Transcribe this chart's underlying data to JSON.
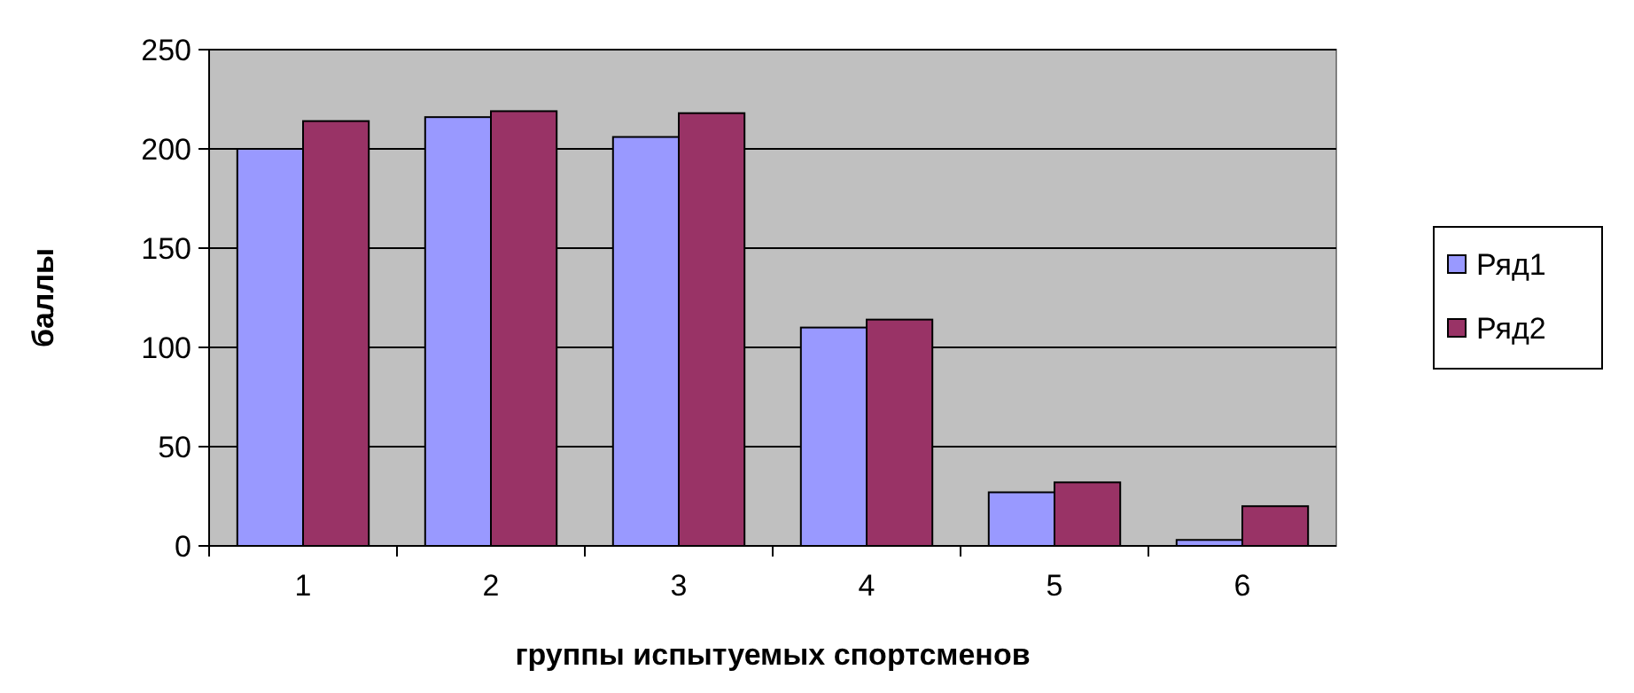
{
  "chart_data": {
    "type": "bar",
    "xlabel": "группы испытуемых спортсменов",
    "ylabel": "баллы",
    "categories": [
      "1",
      "2",
      "3",
      "4",
      "5",
      "6"
    ],
    "series": [
      {
        "name": "Ряд1",
        "color": "#9999ff",
        "values": [
          200,
          216,
          206,
          110,
          27,
          3
        ]
      },
      {
        "name": "Ряд2",
        "color": "#993366",
        "values": [
          214,
          219,
          218,
          114,
          32,
          20
        ]
      }
    ],
    "ylim": [
      0,
      250
    ],
    "yticks": [
      0,
      50,
      100,
      150,
      200,
      250
    ],
    "grid": "y",
    "legend": "right"
  }
}
